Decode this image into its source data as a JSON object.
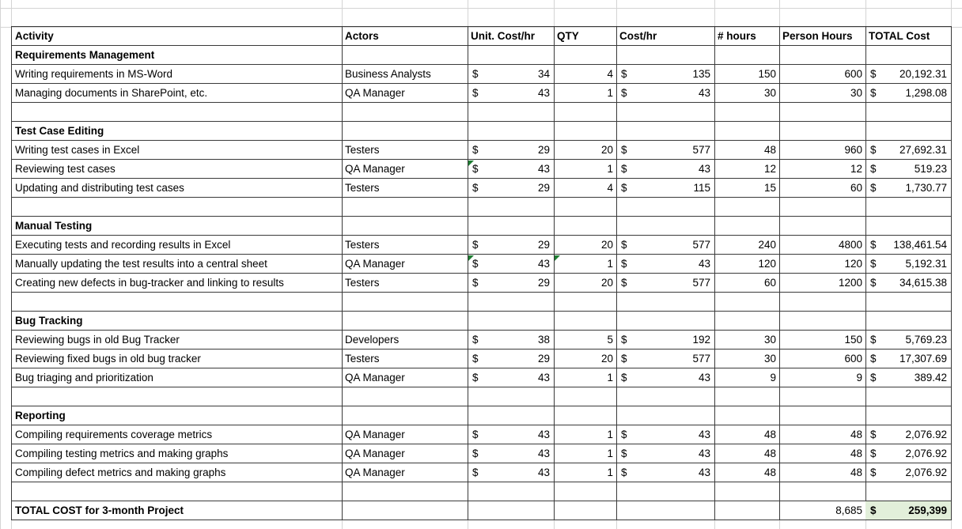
{
  "table": {
    "headers": [
      "Activity",
      "Actors",
      "Unit. Cost/hr",
      "QTY",
      "Cost/hr",
      "# hours",
      "Person Hours",
      "TOTAL Cost"
    ],
    "sections": [
      {
        "title": "Requirements Management",
        "rows": [
          {
            "activity": "Writing requirements in MS-Word",
            "actors": "Business Analysts",
            "unit_cost": {
              "currency": "$",
              "amount": "34"
            },
            "qty": "4",
            "cost_hr": {
              "currency": "$",
              "amount": "135"
            },
            "hours": "150",
            "person_hours": "600",
            "total": {
              "currency": "$",
              "amount": "20,192.31"
            }
          },
          {
            "activity": "Managing documents in SharePoint, etc.",
            "actors": "QA Manager",
            "unit_cost": {
              "currency": "$",
              "amount": "43"
            },
            "qty": "1",
            "cost_hr": {
              "currency": "$",
              "amount": "43"
            },
            "hours": "30",
            "person_hours": "30",
            "total": {
              "currency": "$",
              "amount": "1,298.08"
            }
          }
        ]
      },
      {
        "title": "Test Case Editing",
        "rows": [
          {
            "activity": "Writing test cases in Excel",
            "actors": "Testers",
            "unit_cost": {
              "currency": "$",
              "amount": "29"
            },
            "qty": "20",
            "cost_hr": {
              "currency": "$",
              "amount": "577"
            },
            "hours": "48",
            "person_hours": "960",
            "total": {
              "currency": "$",
              "amount": "27,692.31"
            }
          },
          {
            "activity": "Reviewing test cases",
            "actors": "QA Manager",
            "unit_cost": {
              "currency": "$",
              "amount": "43"
            },
            "qty": "1",
            "cost_hr": {
              "currency": "$",
              "amount": "43"
            },
            "hours": "12",
            "person_hours": "12",
            "total": {
              "currency": "$",
              "amount": "519.23"
            }
          },
          {
            "activity": "Updating and distributing test cases",
            "actors": "Testers",
            "unit_cost": {
              "currency": "$",
              "amount": "29"
            },
            "qty": "4",
            "cost_hr": {
              "currency": "$",
              "amount": "115"
            },
            "hours": "15",
            "person_hours": "60",
            "total": {
              "currency": "$",
              "amount": "1,730.77"
            }
          }
        ]
      },
      {
        "title": "Manual Testing",
        "rows": [
          {
            "activity": "Executing tests and recording results in Excel",
            "actors": "Testers",
            "unit_cost": {
              "currency": "$",
              "amount": "29"
            },
            "qty": "20",
            "cost_hr": {
              "currency": "$",
              "amount": "577"
            },
            "hours": "240",
            "person_hours": "4800",
            "total": {
              "currency": "$",
              "amount": "138,461.54"
            }
          },
          {
            "activity": "Manually updating the test results into a central sheet",
            "actors": "QA Manager",
            "unit_cost": {
              "currency": "$",
              "amount": "43"
            },
            "qty": "1",
            "cost_hr": {
              "currency": "$",
              "amount": "43"
            },
            "hours": "120",
            "person_hours": "120",
            "total": {
              "currency": "$",
              "amount": "5,192.31"
            }
          },
          {
            "activity": "Creating new defects in bug-tracker and linking to results",
            "actors": "Testers",
            "unit_cost": {
              "currency": "$",
              "amount": "29"
            },
            "qty": "20",
            "cost_hr": {
              "currency": "$",
              "amount": "577"
            },
            "hours": "60",
            "person_hours": "1200",
            "total": {
              "currency": "$",
              "amount": "34,615.38"
            }
          }
        ]
      },
      {
        "title": "Bug Tracking",
        "rows": [
          {
            "activity": "Reviewing bugs in old Bug Tracker",
            "actors": "Developers",
            "unit_cost": {
              "currency": "$",
              "amount": "38"
            },
            "qty": "5",
            "cost_hr": {
              "currency": "$",
              "amount": "192"
            },
            "hours": "30",
            "person_hours": "150",
            "total": {
              "currency": "$",
              "amount": "5,769.23"
            }
          },
          {
            "activity": "Reviewing fixed bugs in old bug tracker",
            "actors": "Testers",
            "unit_cost": {
              "currency": "$",
              "amount": "29"
            },
            "qty": "20",
            "cost_hr": {
              "currency": "$",
              "amount": "577"
            },
            "hours": "30",
            "person_hours": "600",
            "total": {
              "currency": "$",
              "amount": "17,307.69"
            }
          },
          {
            "activity": "Bug triaging and prioritization",
            "actors": "QA Manager",
            "unit_cost": {
              "currency": "$",
              "amount": "43"
            },
            "qty": "1",
            "cost_hr": {
              "currency": "$",
              "amount": "43"
            },
            "hours": "9",
            "person_hours": "9",
            "total": {
              "currency": "$",
              "amount": "389.42"
            }
          }
        ]
      },
      {
        "title": "Reporting",
        "rows": [
          {
            "activity": "Compiling requirements coverage metrics",
            "actors": "QA Manager",
            "unit_cost": {
              "currency": "$",
              "amount": "43"
            },
            "qty": "1",
            "cost_hr": {
              "currency": "$",
              "amount": "43"
            },
            "hours": "48",
            "person_hours": "48",
            "total": {
              "currency": "$",
              "amount": "2,076.92"
            }
          },
          {
            "activity": "Compiling testing metrics and making graphs",
            "actors": "QA Manager",
            "unit_cost": {
              "currency": "$",
              "amount": "43"
            },
            "qty": "1",
            "cost_hr": {
              "currency": "$",
              "amount": "43"
            },
            "hours": "48",
            "person_hours": "48",
            "total": {
              "currency": "$",
              "amount": "2,076.92"
            }
          },
          {
            "activity": "Compiling defect metrics and making graphs",
            "actors": "QA Manager",
            "unit_cost": {
              "currency": "$",
              "amount": "43"
            },
            "qty": "1",
            "cost_hr": {
              "currency": "$",
              "amount": "43"
            },
            "hours": "48",
            "person_hours": "48",
            "total": {
              "currency": "$",
              "amount": "2,076.92"
            }
          }
        ]
      }
    ],
    "total_row": {
      "label": "TOTAL COST for 3-month Project",
      "person_hours": "8,685",
      "total": {
        "currency": "$",
        "amount": "259,399"
      }
    }
  }
}
